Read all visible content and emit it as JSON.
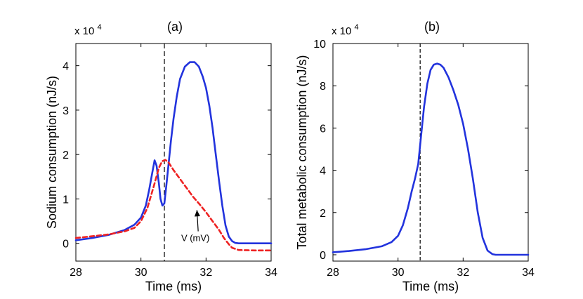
{
  "chart_data": [
    {
      "type": "line",
      "panel": "(a)",
      "title": "(a)",
      "xlabel": "Time (ms)",
      "ylabel": "Sodium consumption (nJ/s)",
      "y_exponent_label": "x 10^4",
      "y_exponent_base": "x 10",
      "y_exponent_power": "4",
      "xlim": [
        28,
        34
      ],
      "ylim": [
        -0.4,
        4.5
      ],
      "xticks": [
        28,
        30,
        32,
        34
      ],
      "yticks": [
        0,
        1,
        2,
        3,
        4
      ],
      "grid": false,
      "vline_x": 30.72,
      "annotation": {
        "text": "V (mV)",
        "x": 31.5,
        "y": 0.05,
        "arrow_to_x": 31.72,
        "arrow_to_y": 0.75
      },
      "series": [
        {
          "name": "Sodium consumption",
          "color": "#2233dd",
          "style": "solid",
          "x": [
            28.0,
            28.5,
            29.0,
            29.5,
            29.8,
            30.0,
            30.15,
            30.25,
            30.35,
            30.42,
            30.48,
            30.55,
            30.6,
            30.66,
            30.72,
            30.78,
            30.85,
            30.92,
            31.0,
            31.1,
            31.2,
            31.35,
            31.5,
            31.65,
            31.78,
            31.9,
            32.0,
            32.1,
            32.2,
            32.3,
            32.4,
            32.5,
            32.6,
            32.7,
            32.8,
            32.9,
            33.0,
            34.0
          ],
          "y": [
            0.07,
            0.12,
            0.19,
            0.3,
            0.42,
            0.58,
            0.85,
            1.2,
            1.6,
            1.87,
            1.75,
            1.35,
            1.0,
            0.85,
            0.9,
            1.3,
            1.8,
            2.3,
            2.8,
            3.3,
            3.7,
            3.98,
            4.08,
            4.08,
            3.98,
            3.75,
            3.5,
            3.1,
            2.6,
            2.0,
            1.4,
            0.85,
            0.4,
            0.15,
            0.05,
            0.01,
            0.0,
            0.0
          ]
        },
        {
          "name": "V (mV)",
          "color": "#ee2222",
          "style": "dashed",
          "x": [
            28.0,
            28.5,
            29.0,
            29.5,
            29.8,
            30.0,
            30.2,
            30.4,
            30.55,
            30.65,
            30.75,
            30.85,
            31.0,
            31.2,
            31.4,
            31.6,
            31.8,
            32.0,
            32.2,
            32.4,
            32.55,
            32.7,
            32.8,
            33.0,
            33.5,
            34.0
          ],
          "y": [
            0.12,
            0.16,
            0.2,
            0.27,
            0.35,
            0.5,
            0.8,
            1.3,
            1.7,
            1.85,
            1.88,
            1.82,
            1.65,
            1.45,
            1.25,
            1.05,
            0.88,
            0.7,
            0.5,
            0.3,
            0.12,
            -0.02,
            -0.1,
            -0.15,
            -0.16,
            -0.16
          ]
        }
      ]
    },
    {
      "type": "line",
      "panel": "(b)",
      "title": "(b)",
      "xlabel": "Time (ms)",
      "ylabel": "Total metabolic consumption (nJ/s)",
      "y_exponent_label": "x 10^4",
      "y_exponent_base": "x 10",
      "y_exponent_power": "4",
      "xlim": [
        28,
        34
      ],
      "ylim": [
        -0.3,
        10
      ],
      "xticks": [
        28,
        30,
        32,
        34
      ],
      "yticks": [
        0,
        2,
        4,
        6,
        8,
        10
      ],
      "grid": false,
      "vline_x": 30.68,
      "series": [
        {
          "name": "Total metabolic consumption",
          "color": "#2233dd",
          "style": "solid",
          "x": [
            28.0,
            28.5,
            29.0,
            29.5,
            29.8,
            30.0,
            30.15,
            30.3,
            30.42,
            30.52,
            30.62,
            30.72,
            30.8,
            30.9,
            31.0,
            31.1,
            31.2,
            31.3,
            31.4,
            31.55,
            31.7,
            31.85,
            32.0,
            32.15,
            32.3,
            32.45,
            32.6,
            32.75,
            32.9,
            33.0,
            34.0
          ],
          "y": [
            0.12,
            0.18,
            0.26,
            0.4,
            0.6,
            0.9,
            1.4,
            2.2,
            3.0,
            3.6,
            4.3,
            5.8,
            7.0,
            8.1,
            8.75,
            9.0,
            9.05,
            9.0,
            8.85,
            8.4,
            7.8,
            7.1,
            6.2,
            5.0,
            3.6,
            2.0,
            0.8,
            0.2,
            0.03,
            0.0,
            0.0
          ]
        }
      ]
    }
  ]
}
